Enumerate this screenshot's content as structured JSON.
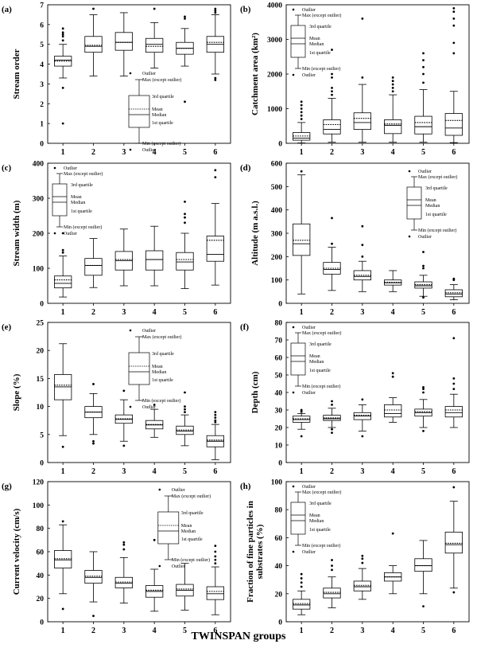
{
  "x_caption": "TWINSPAN groups",
  "legend_text": {
    "outlier": "Outlier",
    "max": "Max (except outlier)",
    "q3": "3rd quartile",
    "mean": "Mean",
    "median": "Median",
    "q1": "1st quartile",
    "min": "Min (except outlier)"
  },
  "chart_data": [
    {
      "type": "box",
      "panel": "(a)",
      "ylabel": "Stream order",
      "ylim": [
        0,
        7
      ],
      "yticks": [
        0,
        1,
        2,
        3,
        4,
        5,
        6,
        7
      ],
      "legend_corner": "middle",
      "legend_style": "A",
      "categories": [
        "1",
        "2",
        "3",
        "4",
        "5",
        "6"
      ],
      "boxes": [
        {
          "min": 3.3,
          "q1": 3.9,
          "median": 4.2,
          "mean": 4.15,
          "q3": 4.4,
          "max": 5.0,
          "outliers": [
            1.0,
            2.8,
            5.2,
            5.4,
            5.5,
            5.6,
            5.8
          ]
        },
        {
          "min": 3.4,
          "q1": 4.6,
          "median": 4.9,
          "mean": 4.95,
          "q3": 5.4,
          "max": 6.5,
          "outliers": [
            6.8
          ]
        },
        {
          "min": 3.4,
          "q1": 4.7,
          "median": 5.1,
          "mean": 5.1,
          "q3": 5.6,
          "max": 6.6,
          "outliers": []
        },
        {
          "min": 3.8,
          "q1": 4.6,
          "median": 5.0,
          "mean": 4.9,
          "q3": 5.3,
          "max": 6.1,
          "outliers": [
            6.8
          ]
        },
        {
          "min": 3.9,
          "q1": 4.5,
          "median": 4.8,
          "mean": 4.8,
          "q3": 5.1,
          "max": 5.8,
          "outliers": [
            2.1,
            6.3,
            6.4
          ]
        },
        {
          "min": 3.5,
          "q1": 4.6,
          "median": 5.0,
          "mean": 5.1,
          "q3": 5.4,
          "max": 6.5,
          "outliers": [
            3.2,
            3.3,
            6.6,
            6.7,
            6.8
          ]
        }
      ]
    },
    {
      "type": "box",
      "panel": "(b)",
      "ylabel": "Catchment area (km²)",
      "ylim": [
        0,
        4000
      ],
      "yticks": [
        0,
        1000,
        2000,
        3000,
        4000
      ],
      "legend_corner": "top-left",
      "legend_style": "B",
      "categories": [
        "1",
        "2",
        "3",
        "4",
        "5",
        "6"
      ],
      "boxes": [
        {
          "min": 10,
          "q1": 90,
          "median": 150,
          "mean": 210,
          "q3": 310,
          "max": 600,
          "outliers": [
            700,
            800,
            900,
            1000,
            1100,
            1200
          ]
        },
        {
          "min": 30,
          "q1": 270,
          "median": 400,
          "mean": 540,
          "q3": 680,
          "max": 1300,
          "outliers": [
            1400,
            1500,
            1600,
            1900,
            2000,
            2700
          ]
        },
        {
          "min": 30,
          "q1": 400,
          "median": 600,
          "mean": 720,
          "q3": 880,
          "max": 1700,
          "outliers": [
            1900,
            3600
          ]
        },
        {
          "min": 30,
          "q1": 280,
          "median": 520,
          "mean": 560,
          "q3": 680,
          "max": 1400,
          "outliers": [
            1500,
            1600,
            1700,
            1800,
            1900
          ]
        },
        {
          "min": 30,
          "q1": 270,
          "median": 480,
          "mean": 600,
          "q3": 780,
          "max": 1550,
          "outliers": [
            1750,
            2000,
            2200,
            2400,
            2600
          ]
        },
        {
          "min": 20,
          "q1": 230,
          "median": 440,
          "mean": 660,
          "q3": 860,
          "max": 1500,
          "outliers": [
            2600,
            2900,
            3400,
            3600,
            3800,
            3900
          ]
        }
      ]
    },
    {
      "type": "box",
      "panel": "(c)",
      "ylabel": "Stream width (m)",
      "ylim": [
        0,
        400
      ],
      "yticks": [
        0,
        100,
        200,
        300,
        400
      ],
      "legend_corner": "top-left",
      "legend_style": "B",
      "categories": [
        "1",
        "2",
        "3",
        "4",
        "5",
        "6"
      ],
      "boxes": [
        {
          "min": 18,
          "q1": 44,
          "median": 57,
          "mean": 67,
          "q3": 78,
          "max": 135,
          "outliers": [
            145,
            152,
            200
          ]
        },
        {
          "min": 45,
          "q1": 80,
          "median": 108,
          "mean": 108,
          "q3": 128,
          "max": 185,
          "outliers": []
        },
        {
          "min": 50,
          "q1": 95,
          "median": 122,
          "mean": 125,
          "q3": 148,
          "max": 212,
          "outliers": []
        },
        {
          "min": 50,
          "q1": 95,
          "median": 125,
          "mean": 125,
          "q3": 150,
          "max": 220,
          "outliers": []
        },
        {
          "min": 42,
          "q1": 95,
          "median": 118,
          "mean": 125,
          "q3": 145,
          "max": 200,
          "outliers": [
            230,
            245,
            255,
            290
          ]
        },
        {
          "min": 52,
          "q1": 120,
          "median": 140,
          "mean": 180,
          "q3": 192,
          "max": 285,
          "outliers": [
            360,
            380
          ]
        }
      ]
    },
    {
      "type": "box",
      "panel": "(d)",
      "ylabel": "Altitude (m a.s.l.)",
      "ylim": [
        0,
        600
      ],
      "yticks": [
        0,
        100,
        200,
        300,
        400,
        500,
        600
      ],
      "legend_corner": "top-right",
      "legend_style": "B",
      "categories": [
        "1",
        "2",
        "3",
        "4",
        "5",
        "6"
      ],
      "boxes": [
        {
          "min": 40,
          "q1": 205,
          "median": 255,
          "mean": 270,
          "q3": 340,
          "max": 550,
          "outliers": [
            565
          ]
        },
        {
          "min": 55,
          "q1": 125,
          "median": 145,
          "mean": 150,
          "q3": 175,
          "max": 240,
          "outliers": [
            255,
            365
          ]
        },
        {
          "min": 50,
          "q1": 100,
          "median": 115,
          "mean": 120,
          "q3": 140,
          "max": 180,
          "outliers": [
            200,
            250,
            330
          ]
        },
        {
          "min": 50,
          "q1": 78,
          "median": 88,
          "mean": 90,
          "q3": 100,
          "max": 140,
          "outliers": []
        },
        {
          "min": 30,
          "q1": 65,
          "median": 75,
          "mean": 80,
          "q3": 92,
          "max": 120,
          "outliers": [
            150,
            160,
            220,
            25
          ]
        },
        {
          "min": 15,
          "q1": 28,
          "median": 40,
          "mean": 45,
          "q3": 58,
          "max": 80,
          "outliers": [
            100,
            105
          ]
        }
      ]
    },
    {
      "type": "box",
      "panel": "(e)",
      "ylabel": "Slope (%)",
      "ylim": [
        0,
        25
      ],
      "yticks": [
        0,
        5,
        10,
        15,
        20,
        25
      ],
      "legend_corner": "top-middle",
      "legend_style": "A",
      "categories": [
        "1",
        "2",
        "3",
        "4",
        "5",
        "6"
      ],
      "boxes": [
        {
          "min": 4.8,
          "q1": 11.2,
          "median": 13.5,
          "mean": 13.8,
          "q3": 15.7,
          "max": 21.2,
          "outliers": [
            2.8
          ]
        },
        {
          "min": 5.0,
          "q1": 8.0,
          "median": 9.0,
          "mean": 9.0,
          "q3": 10.0,
          "max": 12.3,
          "outliers": [
            3.4,
            3.8,
            14.0
          ]
        },
        {
          "min": 3.8,
          "q1": 7.0,
          "median": 7.7,
          "mean": 7.8,
          "q3": 8.5,
          "max": 11.2,
          "outliers": [
            3.0,
            12.8
          ]
        },
        {
          "min": 4.5,
          "q1": 6.0,
          "median": 6.7,
          "mean": 6.8,
          "q3": 7.5,
          "max": 9.5,
          "outliers": [
            10.3
          ]
        },
        {
          "min": 3.0,
          "q1": 5.0,
          "median": 5.6,
          "mean": 5.8,
          "q3": 6.5,
          "max": 8.5,
          "outliers": [
            9.0,
            9.5,
            10.0,
            12.5
          ]
        },
        {
          "min": 0.5,
          "q1": 2.8,
          "median": 3.8,
          "mean": 4.0,
          "q3": 4.8,
          "max": 6.8,
          "outliers": [
            7.2,
            7.5,
            8.0,
            8.5,
            9.0
          ]
        }
      ]
    },
    {
      "type": "box",
      "panel": "(f)",
      "ylabel": "Depth (cm)",
      "ylim": [
        0,
        80
      ],
      "yticks": [
        0,
        10,
        20,
        30,
        40,
        50,
        60,
        70,
        80
      ],
      "legend_corner": "top-left",
      "legend_style": "B",
      "categories": [
        "1",
        "2",
        "3",
        "4",
        "5",
        "6"
      ],
      "boxes": [
        {
          "min": 19,
          "q1": 23,
          "median": 24.5,
          "mean": 25,
          "q3": 26.5,
          "max": 28,
          "outliers": [
            15,
            29,
            30
          ]
        },
        {
          "min": 20,
          "q1": 24,
          "median": 25,
          "mean": 25.5,
          "q3": 27,
          "max": 31,
          "outliers": [
            17,
            19,
            33,
            35
          ]
        },
        {
          "min": 18,
          "q1": 24.5,
          "median": 26.5,
          "mean": 27,
          "q3": 28.5,
          "max": 33,
          "outliers": [
            15,
            36
          ]
        },
        {
          "min": 23,
          "q1": 26,
          "median": 28,
          "mean": 30,
          "q3": 33,
          "max": 37,
          "outliers": [
            49,
            51
          ]
        },
        {
          "min": 20,
          "q1": 26.5,
          "median": 28.5,
          "mean": 29,
          "q3": 30.5,
          "max": 36,
          "outliers": [
            18,
            40,
            42,
            43
          ]
        },
        {
          "min": 20,
          "q1": 26,
          "median": 28.5,
          "mean": 30,
          "q3": 32,
          "max": 39,
          "outliers": [
            42,
            45,
            48,
            71
          ]
        }
      ]
    },
    {
      "type": "box",
      "panel": "(g)",
      "ylabel": "Current velocity (cm/s)",
      "ylim": [
        0,
        120
      ],
      "yticks": [
        0,
        20,
        40,
        60,
        80,
        100,
        120
      ],
      "legend_corner": "top-right",
      "legend_style": "A",
      "categories": [
        "1",
        "2",
        "3",
        "4",
        "5",
        "6"
      ],
      "boxes": [
        {
          "min": 24,
          "q1": 46,
          "median": 53,
          "mean": 54,
          "q3": 61,
          "max": 83,
          "outliers": [
            11,
            86
          ]
        },
        {
          "min": 17,
          "q1": 33,
          "median": 38,
          "mean": 39,
          "q3": 44,
          "max": 60,
          "outliers": [
            5
          ]
        },
        {
          "min": 16,
          "q1": 29,
          "median": 33,
          "mean": 34,
          "q3": 38,
          "max": 55,
          "outliers": [
            62,
            66,
            68
          ]
        },
        {
          "min": 9,
          "q1": 21,
          "median": 26,
          "mean": 27,
          "q3": 31,
          "max": 45,
          "outliers": [
            70
          ]
        },
        {
          "min": 10,
          "q1": 22,
          "median": 27,
          "mean": 28,
          "q3": 32,
          "max": 50,
          "outliers": []
        },
        {
          "min": 6,
          "q1": 19,
          "median": 24,
          "mean": 26,
          "q3": 30,
          "max": 47,
          "outliers": [
            50,
            53,
            56,
            60,
            65
          ]
        }
      ]
    },
    {
      "type": "box",
      "panel": "(h)",
      "ylabel": "Fraction of fine particles in substrates (%)",
      "ylim": [
        0,
        100
      ],
      "yticks": [
        0,
        20,
        40,
        60,
        80,
        100
      ],
      "legend_corner": "top-left",
      "legend_style": "B",
      "categories": [
        "1",
        "2",
        "3",
        "4",
        "5",
        "6"
      ],
      "boxes": [
        {
          "min": 5,
          "q1": 9,
          "median": 12,
          "mean": 13,
          "q3": 16,
          "max": 22,
          "outliers": [
            25,
            28,
            31,
            34
          ]
        },
        {
          "min": 10,
          "q1": 17,
          "median": 20,
          "mean": 21,
          "q3": 24,
          "max": 32,
          "outliers": [
            37,
            40,
            44
          ]
        },
        {
          "min": 16,
          "q1": 22,
          "median": 25,
          "mean": 26,
          "q3": 29,
          "max": 38,
          "outliers": [
            42,
            45,
            47
          ]
        },
        {
          "min": 20,
          "q1": 29,
          "median": 32,
          "mean": 32,
          "q3": 35,
          "max": 40,
          "outliers": [
            63
          ]
        },
        {
          "min": 20,
          "q1": 36,
          "median": 40,
          "mean": 40,
          "q3": 45,
          "max": 58,
          "outliers": [
            11
          ]
        },
        {
          "min": 24,
          "q1": 49,
          "median": 55,
          "mean": 56,
          "q3": 64,
          "max": 86,
          "outliers": [
            21,
            96
          ]
        }
      ]
    }
  ]
}
